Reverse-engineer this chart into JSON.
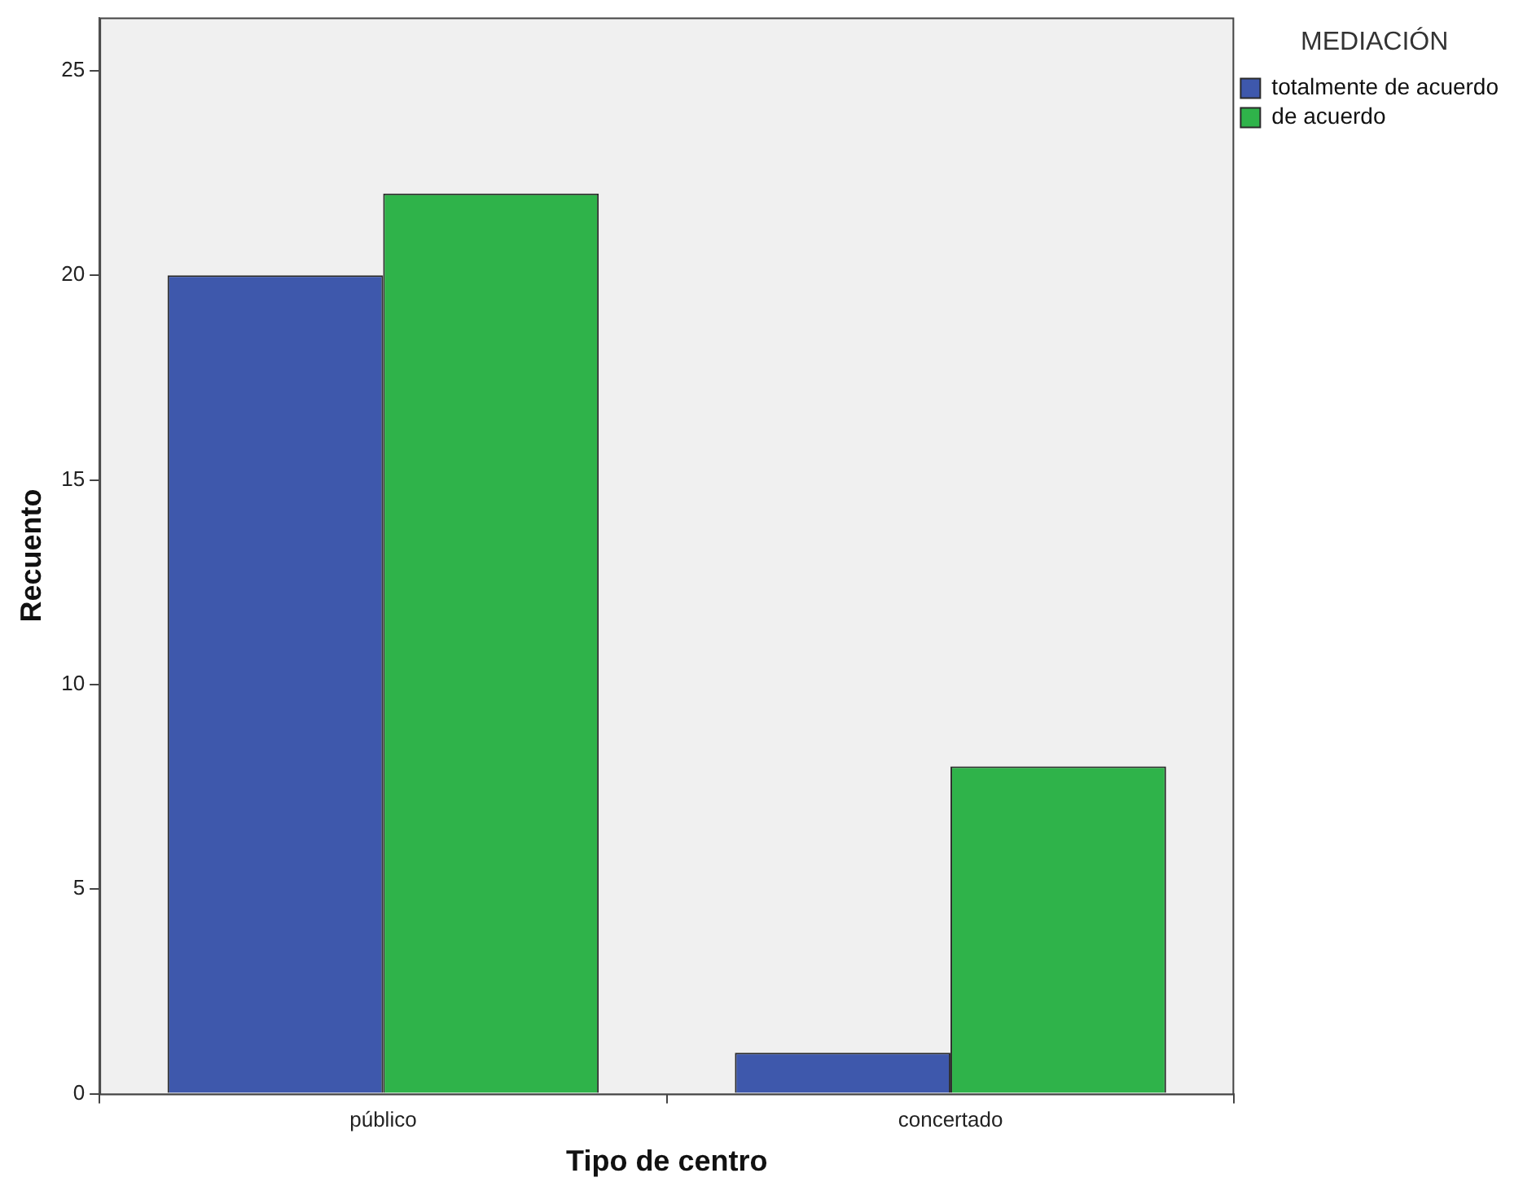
{
  "chart_data": {
    "type": "bar",
    "xlabel": "Tipo de centro",
    "ylabel": "Recuento",
    "legend_title": "MEDIACIÓN",
    "categories": [
      "público",
      "concertado"
    ],
    "series": [
      {
        "name": "totalmente de acuerdo",
        "color": "#3e58ac",
        "values": [
          20,
          1
        ]
      },
      {
        "name": "de acuerdo",
        "color": "#2fb34a",
        "values": [
          22,
          8
        ]
      }
    ],
    "ylim": [
      0,
      26.3
    ],
    "yticks": [
      0,
      5,
      10,
      15,
      20,
      25
    ],
    "grid": false,
    "legend": "top right"
  }
}
